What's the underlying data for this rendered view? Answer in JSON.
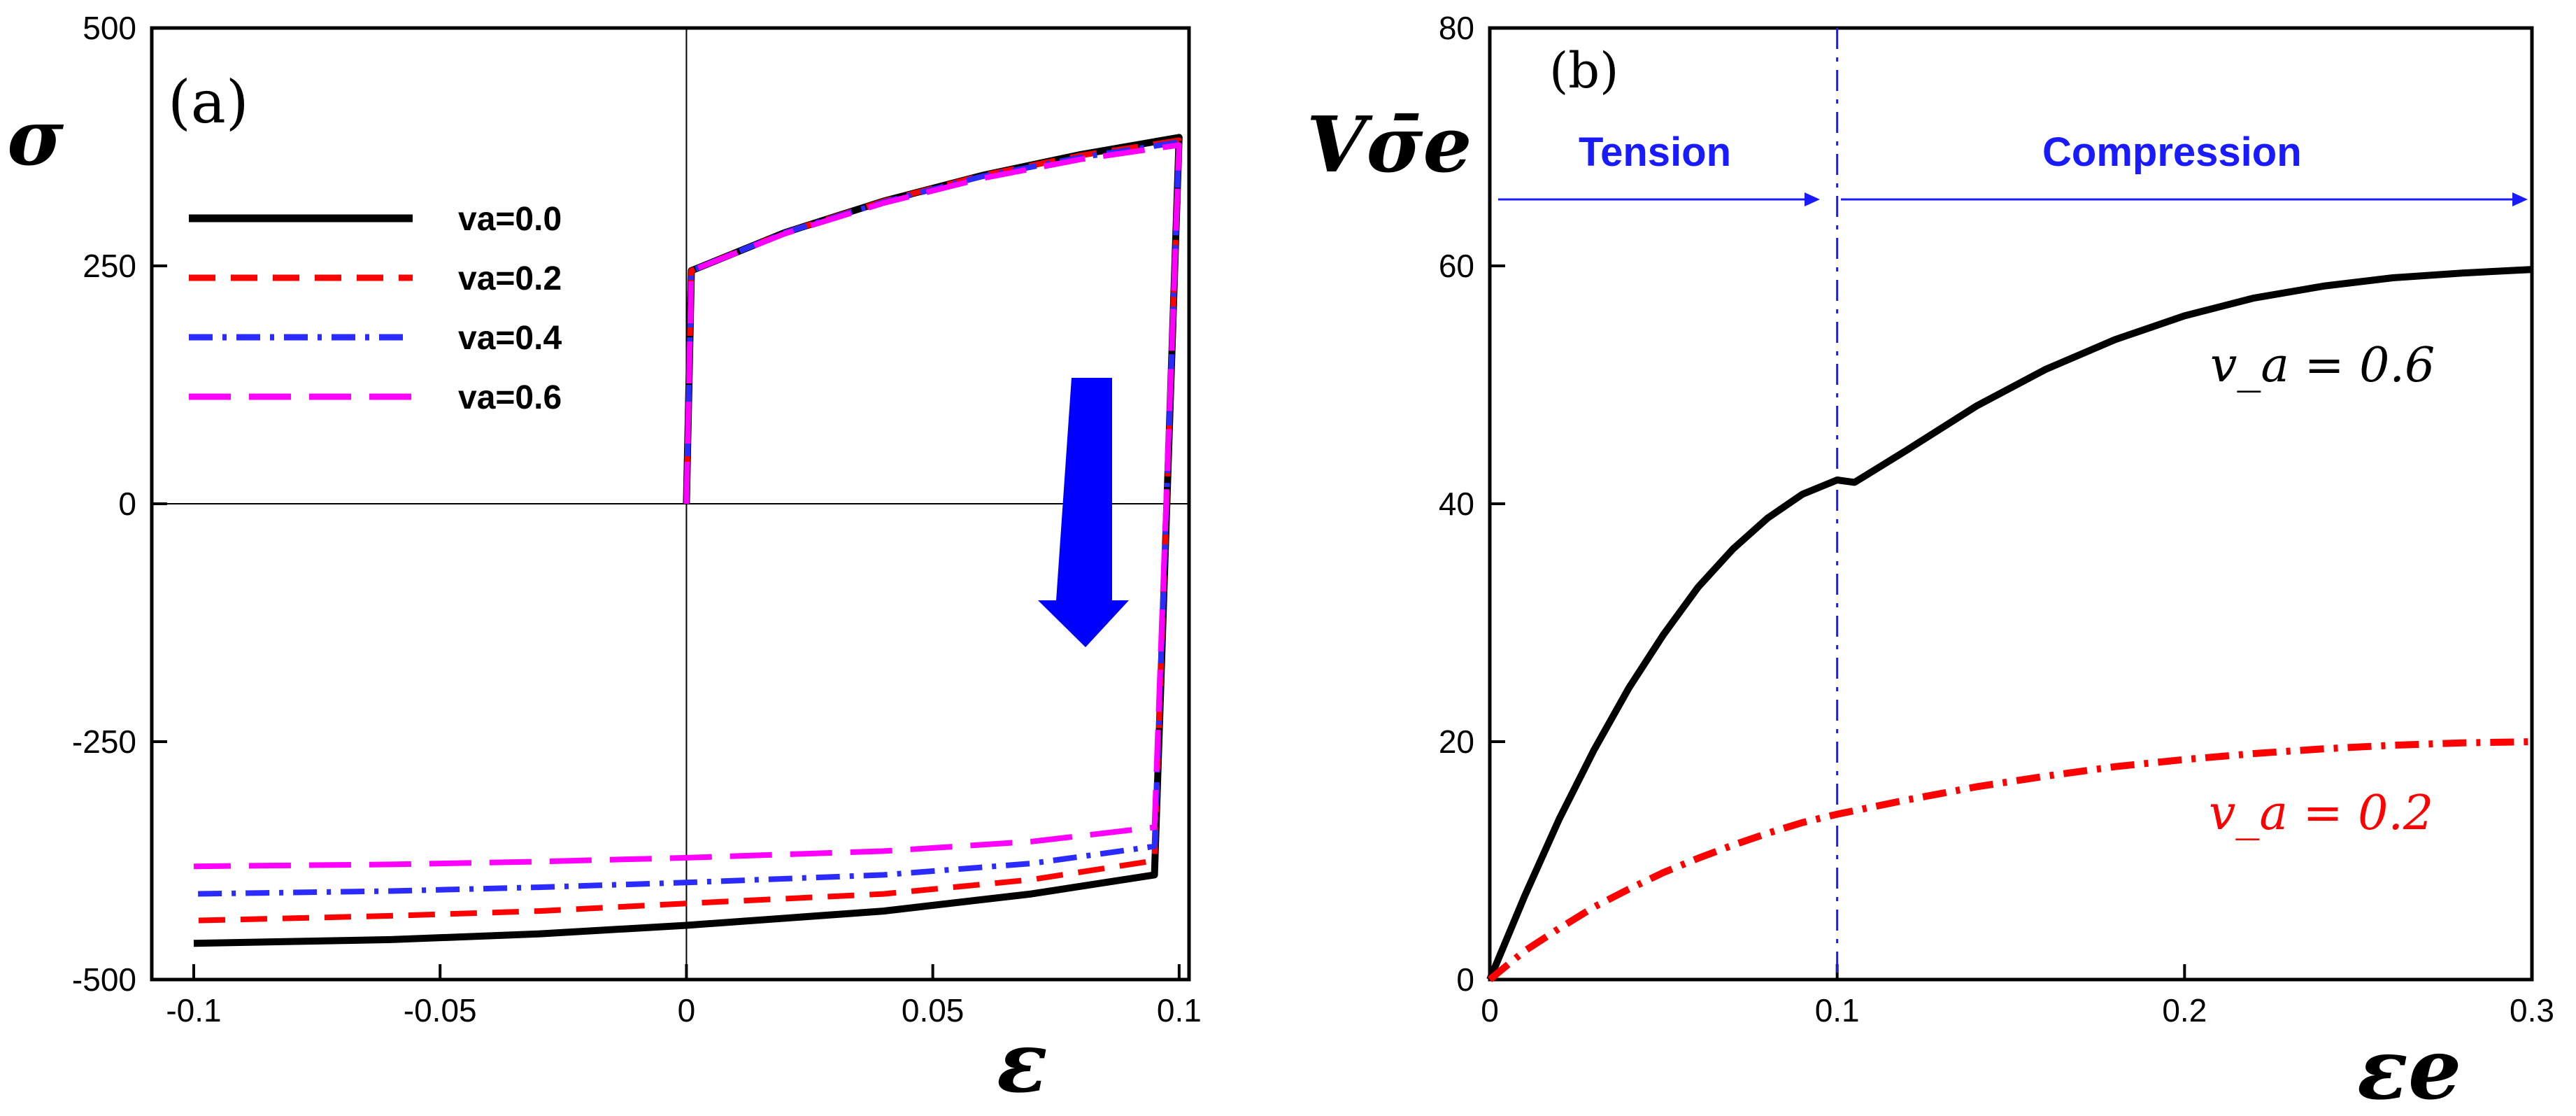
{
  "chart_data": [
    {
      "type": "line",
      "panel_label": "(a)",
      "ylabel": "σ",
      "xlabel": "ε",
      "xlim": [
        -0.1,
        0.1
      ],
      "ylim": [
        -500,
        500
      ],
      "xticks": [
        -0.1,
        -0.05,
        0,
        0.05,
        0.1
      ],
      "xtick_labels": [
        "-0.1",
        "-0.05",
        "0",
        "0.05",
        "0.1"
      ],
      "yticks": [
        -500,
        -250,
        0,
        250,
        500
      ],
      "ytick_labels": [
        "-500",
        "-250",
        "0",
        "250",
        "500"
      ],
      "reference_lines": "x=0, y=0",
      "annotation": "blue down arrow at unloading branch",
      "series": [
        {
          "name": "va=0.0",
          "color": "#000000",
          "style": "solid",
          "x": [
            0,
            0.001,
            0.02,
            0.04,
            0.06,
            0.08,
            0.1,
            0.095,
            0.07,
            0.04,
            0.0,
            -0.03,
            -0.06,
            -0.1
          ],
          "y": [
            0,
            245,
            285,
            318,
            345,
            367,
            385,
            -390,
            -410,
            -428,
            -443,
            -452,
            -458,
            -462
          ]
        },
        {
          "name": "va=0.2",
          "color": "#ff0000",
          "style": "dashed",
          "x": [
            0,
            0.001,
            0.02,
            0.04,
            0.06,
            0.08,
            0.1,
            0.095,
            0.07,
            0.04,
            0.0,
            -0.03,
            -0.06,
            -0.1
          ],
          "y": [
            0,
            245,
            285,
            318,
            345,
            366,
            382,
            -375,
            -395,
            -410,
            -420,
            -428,
            -433,
            -438
          ]
        },
        {
          "name": "va=0.4",
          "color": "#2b2bff",
          "style": "dashdot",
          "x": [
            0,
            0.001,
            0.02,
            0.04,
            0.06,
            0.08,
            0.1,
            0.095,
            0.07,
            0.04,
            0.0,
            -0.03,
            -0.06,
            -0.1
          ],
          "y": [
            0,
            245,
            285,
            317,
            344,
            364,
            380,
            -360,
            -378,
            -390,
            -398,
            -403,
            -407,
            -410
          ]
        },
        {
          "name": "va=0.6",
          "color": "#ff00ff",
          "style": "longdash",
          "x": [
            0,
            0.001,
            0.02,
            0.04,
            0.06,
            0.08,
            0.1,
            0.095,
            0.07,
            0.04,
            0.0,
            -0.03,
            -0.06,
            -0.1
          ],
          "y": [
            0,
            245,
            284,
            316,
            342,
            362,
            377,
            -340,
            -355,
            -365,
            -372,
            -376,
            -379,
            -381
          ]
        }
      ]
    },
    {
      "type": "line",
      "panel_label": "(b)",
      "ylabel": "Vσ̄e",
      "xlabel": "εe",
      "xlim": [
        0,
        0.3
      ],
      "ylim": [
        0,
        80
      ],
      "xticks": [
        0,
        0.1,
        0.2,
        0.3
      ],
      "xtick_labels": [
        "0",
        "0.1",
        "0.2",
        "0.3"
      ],
      "yticks": [
        0,
        20,
        40,
        60,
        80
      ],
      "ytick_labels": [
        "0",
        "20",
        "40",
        "60",
        "80"
      ],
      "divider_x": 0.1,
      "regions": [
        "Tension",
        "Compression"
      ],
      "series": [
        {
          "name": "v_a = 0.6",
          "color": "#000000",
          "style": "solid",
          "x": [
            0,
            0.01,
            0.02,
            0.03,
            0.04,
            0.05,
            0.06,
            0.07,
            0.08,
            0.09,
            0.1,
            0.105,
            0.12,
            0.14,
            0.16,
            0.18,
            0.2,
            0.22,
            0.24,
            0.26,
            0.28,
            0.3
          ],
          "y": [
            0,
            7,
            13.5,
            19.3,
            24.5,
            29,
            33,
            36.2,
            38.8,
            40.8,
            42,
            41.8,
            44.5,
            48.2,
            51.3,
            53.8,
            55.8,
            57.3,
            58.3,
            59,
            59.4,
            59.7
          ]
        },
        {
          "name": "v_a = 0.2",
          "color": "#ff0000",
          "style": "dashdot",
          "x": [
            0,
            0.01,
            0.02,
            0.03,
            0.04,
            0.05,
            0.06,
            0.07,
            0.08,
            0.09,
            0.1,
            0.12,
            0.14,
            0.16,
            0.18,
            0.2,
            0.22,
            0.24,
            0.26,
            0.28,
            0.3
          ],
          "y": [
            0,
            2.4,
            4.3,
            6.1,
            7.6,
            9,
            10.2,
            11.3,
            12.3,
            13.2,
            13.9,
            15.1,
            16.2,
            17.1,
            17.9,
            18.5,
            19,
            19.4,
            19.7,
            19.9,
            20
          ]
        }
      ]
    }
  ]
}
